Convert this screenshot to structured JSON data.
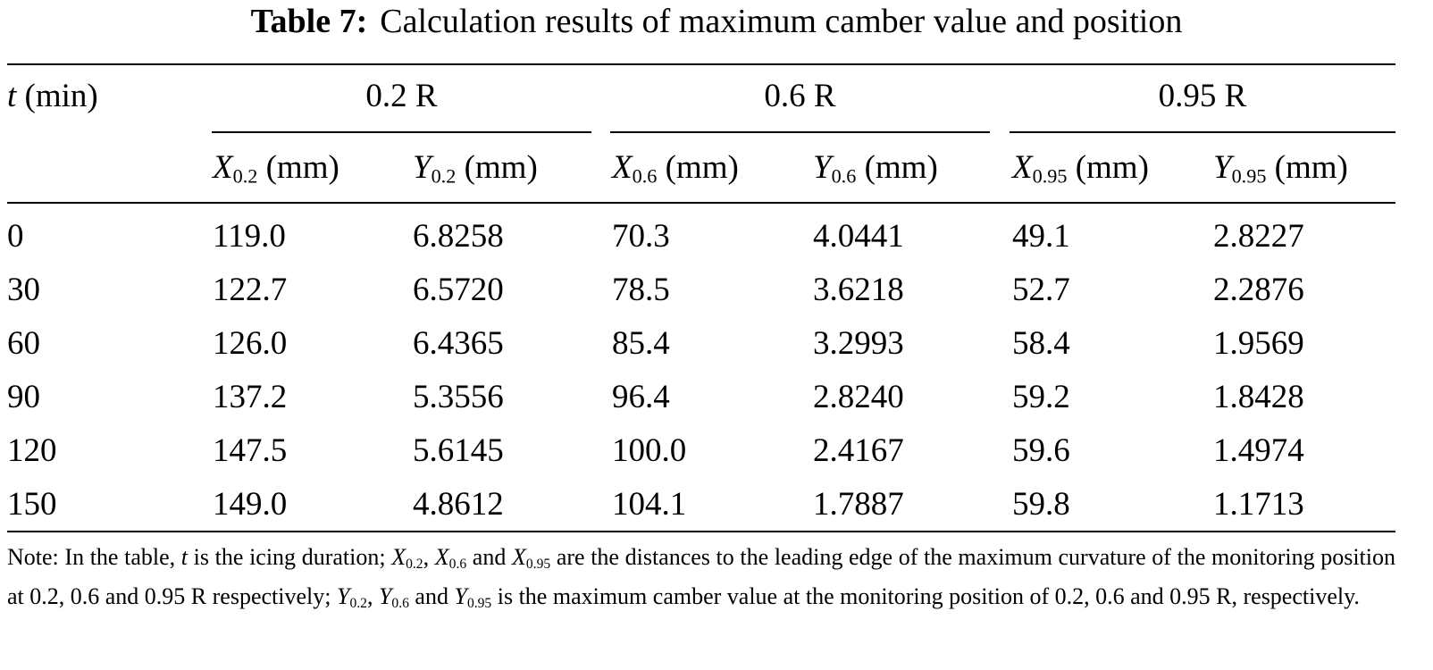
{
  "title": {
    "label": "Table 7:",
    "text": "Calculation results of maximum camber value and position"
  },
  "header": {
    "t_var": "t",
    "t_unit": "(min)",
    "groups": [
      "0.2 R",
      "0.6 R",
      "0.95 R"
    ],
    "columns": [
      {
        "var": "X",
        "sub": "0.2",
        "unit": "(mm)"
      },
      {
        "var": "Y",
        "sub": "0.2",
        "unit": "(mm)"
      },
      {
        "var": "X",
        "sub": "0.6",
        "unit": "(mm)"
      },
      {
        "var": "Y",
        "sub": "0.6",
        "unit": "(mm)"
      },
      {
        "var": "X",
        "sub": "0.95",
        "unit": "(mm)"
      },
      {
        "var": "Y",
        "sub": "0.95",
        "unit": "(mm)"
      }
    ]
  },
  "rows": [
    [
      "0",
      "119.0",
      "6.8258",
      "70.3",
      "4.0441",
      "49.1",
      "2.8227"
    ],
    [
      "30",
      "122.7",
      "6.5720",
      "78.5",
      "3.6218",
      "52.7",
      "2.2876"
    ],
    [
      "60",
      "126.0",
      "6.4365",
      "85.4",
      "3.2993",
      "58.4",
      "1.9569"
    ],
    [
      "90",
      "137.2",
      "5.3556",
      "96.4",
      "2.8240",
      "59.2",
      "1.8428"
    ],
    [
      "120",
      "147.5",
      "5.6145",
      "100.0",
      "2.4167",
      "59.6",
      "1.4974"
    ],
    [
      "150",
      "149.0",
      "4.8612",
      "104.1",
      "1.7887",
      "59.8",
      "1.1713"
    ]
  ],
  "note": {
    "s0": "Note: In the table, ",
    "t": "t",
    "s1": " is the icing duration; ",
    "X": "X",
    "sub02": "0.2",
    "sub06": "0.6",
    "sub095": "0.95",
    "comma": ", ",
    "and": " and ",
    "s2": " are the distances to the leading edge of the maximum curvature of the monitoring position at 0.2, 0.6 and 0.95 R respectively; ",
    "Y": "Y",
    "s3": " is the maximum camber value at the monitoring position of 0.2, 0.6 and 0.95 R, respectively."
  }
}
